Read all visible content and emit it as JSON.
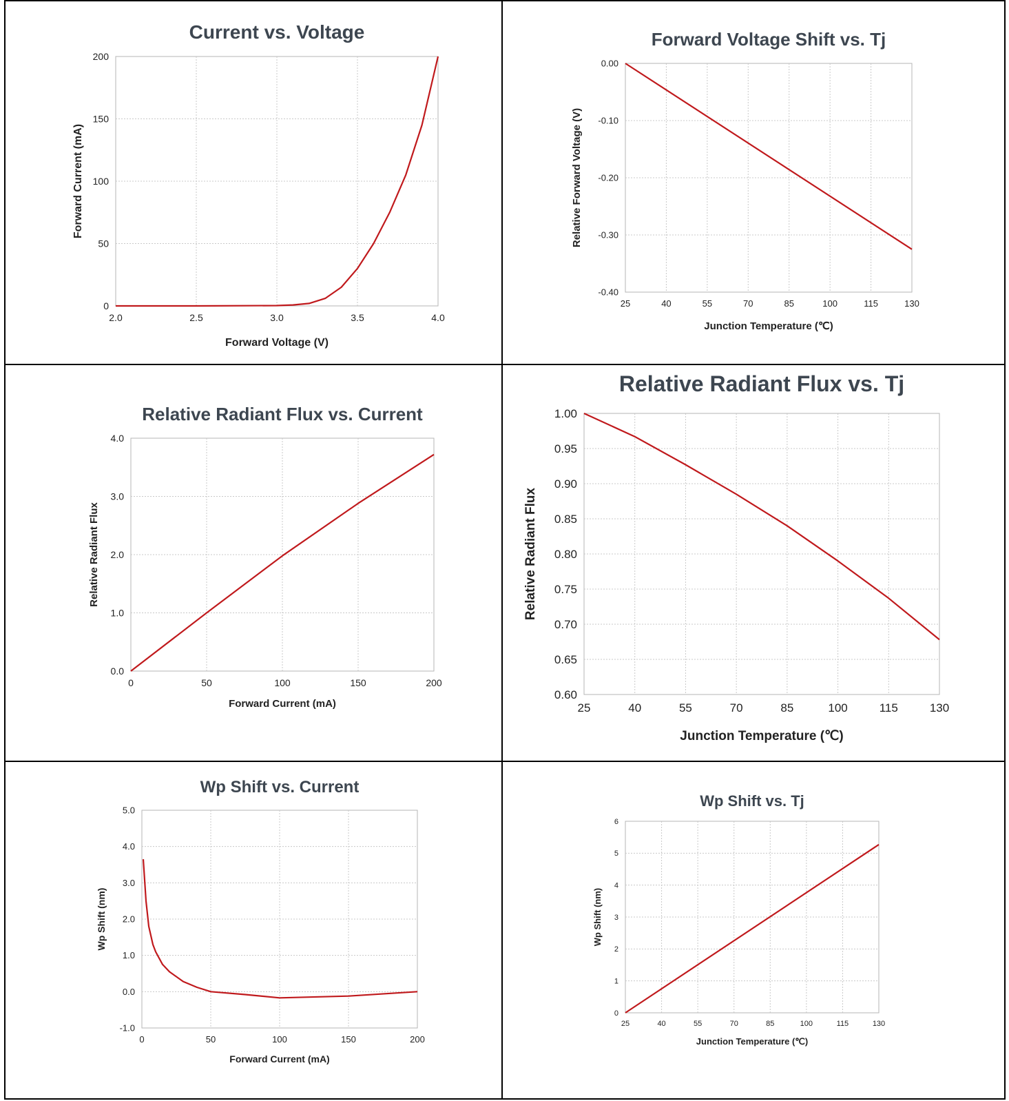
{
  "colors": {
    "line": "#c0191c",
    "grid": "#c8c8c8",
    "frame": "#b5b5b5",
    "title": "#3d4650"
  },
  "chart_data": [
    {
      "type": "line",
      "title": "Current  vs. Voltage",
      "xlabel": "Forward Voltage (V)",
      "ylabel": "Forward Current (mA)",
      "xlim": [
        2.0,
        4.0
      ],
      "ylim": [
        0,
        200
      ],
      "xticks": [
        2.0,
        2.5,
        3.0,
        3.5,
        4.0
      ],
      "yticks": [
        0,
        50,
        100,
        150,
        200
      ],
      "xtick_labels": [
        "2.0",
        "2.5",
        "3.0",
        "3.5",
        "4.0"
      ],
      "ytick_labels": [
        "0",
        "50",
        "100",
        "150",
        "200"
      ],
      "grid": true,
      "series": [
        {
          "x": [
            2.0,
            2.5,
            3.0,
            3.1,
            3.2,
            3.3,
            3.4,
            3.5,
            3.6,
            3.7,
            3.8,
            3.9,
            4.0
          ],
          "y": [
            0,
            0,
            0.3,
            0.8,
            2,
            6,
            15,
            30,
            50,
            75,
            105,
            145,
            200
          ]
        }
      ]
    },
    {
      "type": "line",
      "title": "Forward Voltage Shift vs. Tj",
      "xlabel": "Junction Temperature (℃)",
      "ylabel": "Relative Forward Voltage (V)",
      "xlim": [
        25,
        130
      ],
      "ylim": [
        -0.4,
        0.0
      ],
      "xticks": [
        25,
        40,
        55,
        70,
        85,
        100,
        115,
        130
      ],
      "yticks": [
        0.0,
        -0.1,
        -0.2,
        -0.3,
        -0.4
      ],
      "xtick_labels": [
        "25",
        "40",
        "55",
        "70",
        "85",
        "100",
        "115",
        "130"
      ],
      "ytick_labels": [
        "0.00",
        "-0.10",
        "-0.20",
        "-0.30",
        "-0.40"
      ],
      "grid": true,
      "series": [
        {
          "x": [
            25,
            130
          ],
          "y": [
            0.0,
            -0.325
          ]
        }
      ]
    },
    {
      "type": "line",
      "title": "Relative Radiant Flux vs. Current",
      "xlabel": "Forward Current (mA)",
      "ylabel": "Relative Radiant Flux",
      "xlim": [
        0,
        200
      ],
      "ylim": [
        0.0,
        4.0
      ],
      "xticks": [
        0,
        50,
        100,
        150,
        200
      ],
      "yticks": [
        0.0,
        1.0,
        2.0,
        3.0,
        4.0
      ],
      "xtick_labels": [
        "0",
        "50",
        "100",
        "150",
        "200"
      ],
      "ytick_labels": [
        "0.0",
        "1.0",
        "2.0",
        "3.0",
        "4.0"
      ],
      "grid": true,
      "series": [
        {
          "x": [
            0,
            50,
            100,
            150,
            200
          ],
          "y": [
            0.0,
            1.0,
            1.98,
            2.88,
            3.72
          ]
        }
      ]
    },
    {
      "type": "line",
      "title": "Relative Radiant Flux vs. Tj",
      "xlabel": "Junction Temperature (℃)",
      "ylabel": "Relative Radiant Flux",
      "xlim": [
        25,
        130
      ],
      "ylim": [
        0.6,
        1.0
      ],
      "xticks": [
        25,
        40,
        55,
        70,
        85,
        100,
        115,
        130
      ],
      "yticks": [
        0.6,
        0.65,
        0.7,
        0.75,
        0.8,
        0.85,
        0.9,
        0.95,
        1.0
      ],
      "xtick_labels": [
        "25",
        "40",
        "55",
        "70",
        "85",
        "100",
        "115",
        "130"
      ],
      "ytick_labels": [
        "0.60",
        "0.65",
        "0.70",
        "0.75",
        "0.80",
        "0.85",
        "0.90",
        "0.95",
        "1.00"
      ],
      "grid": true,
      "series": [
        {
          "x": [
            25,
            40,
            55,
            70,
            85,
            100,
            115,
            130
          ],
          "y": [
            1.0,
            0.967,
            0.927,
            0.885,
            0.84,
            0.79,
            0.737,
            0.678
          ]
        }
      ]
    },
    {
      "type": "line",
      "title": "Wp Shift vs. Current",
      "xlabel": "Forward Current (mA)",
      "ylabel": "Wp Shift (nm)",
      "xlim": [
        0,
        200
      ],
      "ylim": [
        -1.0,
        5.0
      ],
      "xticks": [
        0,
        50,
        100,
        150,
        200
      ],
      "yticks": [
        -1.0,
        0.0,
        1.0,
        2.0,
        3.0,
        4.0,
        5.0
      ],
      "xtick_labels": [
        "0",
        "50",
        "100",
        "150",
        "200"
      ],
      "ytick_labels": [
        "-1.0",
        "0.0",
        "1.0",
        "2.0",
        "3.0",
        "4.0",
        "5.0"
      ],
      "grid": true,
      "series": [
        {
          "x": [
            1,
            3,
            5,
            8,
            10,
            15,
            20,
            30,
            40,
            50,
            75,
            100,
            150,
            200
          ],
          "y": [
            3.65,
            2.5,
            1.8,
            1.3,
            1.1,
            0.75,
            0.55,
            0.28,
            0.12,
            0.0,
            -0.08,
            -0.17,
            -0.12,
            0.0
          ]
        }
      ]
    },
    {
      "type": "line",
      "title": "Wp Shift vs. Tj",
      "xlabel": "Junction Temperature (℃)",
      "ylabel": "Wp Shift (nm)",
      "xlim": [
        25,
        130
      ],
      "ylim": [
        0,
        6
      ],
      "xticks": [
        25,
        40,
        55,
        70,
        85,
        100,
        115,
        130
      ],
      "yticks": [
        0,
        1,
        2,
        3,
        4,
        5,
        6
      ],
      "xtick_labels": [
        "25",
        "40",
        "55",
        "70",
        "85",
        "100",
        "115",
        "130"
      ],
      "ytick_labels": [
        "0",
        "1",
        "2",
        "3",
        "4",
        "5",
        "6"
      ],
      "grid": true,
      "series": [
        {
          "x": [
            25,
            130
          ],
          "y": [
            0,
            5.27
          ]
        }
      ]
    }
  ]
}
